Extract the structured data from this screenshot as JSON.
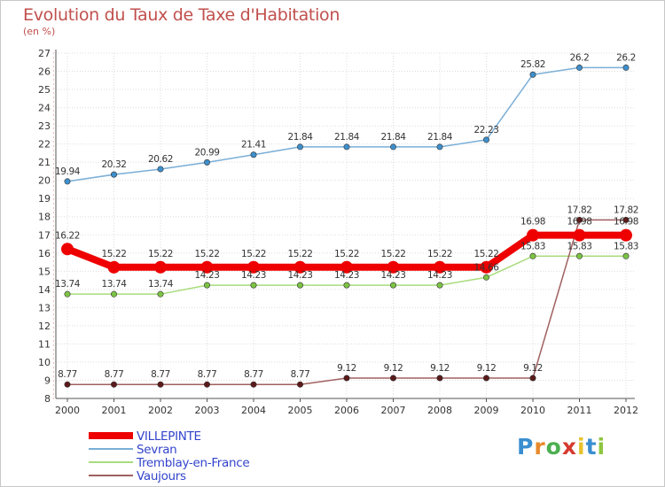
{
  "header": {
    "title": "Evolution du Taux de Taxe d'Habitation",
    "subtitle": "(en %)"
  },
  "logo": {
    "letters": [
      "P",
      "r",
      "o",
      "x",
      "i",
      "t",
      "i"
    ],
    "colors": [
      "#3a8ed0",
      "#e8892b",
      "#4caf50",
      "#d63a2f",
      "#e8c22b",
      "#3a8ed0",
      "#8cc63f"
    ]
  },
  "chart_data": {
    "type": "line",
    "x": [
      "2000",
      "2001",
      "2002",
      "2003",
      "2004",
      "2005",
      "2006",
      "2007",
      "2008",
      "2009",
      "2010",
      "2011",
      "2012"
    ],
    "ylim": [
      8,
      27
    ],
    "yticks": [
      8,
      9,
      10,
      11,
      12,
      13,
      14,
      15,
      16,
      17,
      18,
      19,
      20,
      21,
      22,
      23,
      24,
      25,
      26,
      27
    ],
    "grid": true,
    "legend_position": "bottom-left",
    "series": [
      {
        "name": "Sevran",
        "color": "#7aaed6",
        "marker": "#3f8fcc",
        "values": [
          19.94,
          20.32,
          20.62,
          20.99,
          21.41,
          21.84,
          21.84,
          21.84,
          21.84,
          22.23,
          25.82,
          26.2,
          26.2
        ],
        "labels": [
          "19.94",
          "20.32",
          "20.62",
          "20.99",
          "21.41",
          "21.84",
          "21.84",
          "21.84",
          "21.84",
          "22.23",
          "25.82",
          "26.2",
          "26.2"
        ]
      },
      {
        "name": "Tremblay-en-France",
        "color": "#a8dc7c",
        "marker": "#7cc444",
        "values": [
          13.74,
          13.74,
          13.74,
          14.23,
          14.23,
          14.23,
          14.23,
          14.23,
          14.23,
          14.66,
          15.83,
          15.83,
          15.83
        ],
        "labels": [
          "13.74",
          "13.74",
          "13.74",
          "14.23",
          "14.23",
          "14.23",
          "14.23",
          "14.23",
          "14.23",
          "14.66",
          "15.83",
          "15.83",
          "15.83"
        ]
      },
      {
        "name": "Vaujours",
        "color": "#a06060",
        "marker": "#5c1a1a",
        "values": [
          8.77,
          8.77,
          8.77,
          8.77,
          8.77,
          8.77,
          9.12,
          9.12,
          9.12,
          9.12,
          9.12,
          17.82,
          17.82
        ],
        "labels": [
          "8.77",
          "8.77",
          "8.77",
          "8.77",
          "8.77",
          "8.77",
          "9.12",
          "9.12",
          "9.12",
          "9.12",
          "9.12",
          "17.82",
          "17.82"
        ]
      },
      {
        "name": "VILLEPINTE",
        "color": "#ee0000",
        "marker": "#ee0000",
        "values": [
          16.22,
          15.22,
          15.22,
          15.22,
          15.22,
          15.22,
          15.22,
          15.22,
          15.22,
          15.22,
          16.98,
          16.98,
          16.98
        ],
        "labels": [
          "16.22",
          "15.22",
          "15.22",
          "15.22",
          "15.22",
          "15.22",
          "15.22",
          "15.22",
          "15.22",
          "15.22",
          "16.98",
          "16.98",
          "16.98"
        ]
      }
    ],
    "legend": [
      "VILLEPINTE",
      "Sevran",
      "Tremblay-en-France",
      "Vaujours"
    ]
  }
}
